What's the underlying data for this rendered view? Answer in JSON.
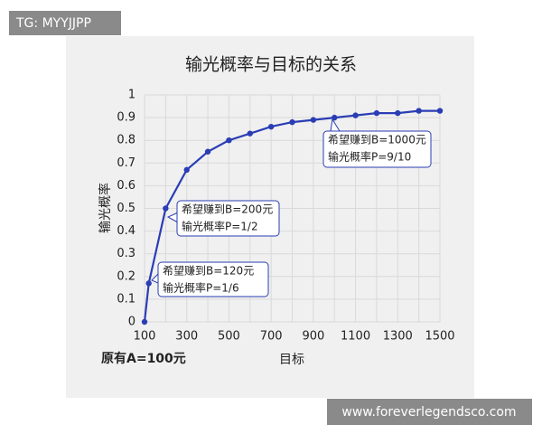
{
  "watermarks": {
    "top": "TG: MYYJJPP",
    "bottom": "www.foreverlegendsco.com"
  },
  "chart_data": {
    "type": "line",
    "title": "输光概率与目标的关系",
    "x_label": "目标",
    "y_label": "输光概率",
    "note": "原有A=100元",
    "x": [
      100,
      120,
      200,
      300,
      400,
      500,
      600,
      700,
      800,
      900,
      1000,
      1100,
      1200,
      1300,
      1400,
      1500
    ],
    "values": [
      0,
      0.17,
      0.5,
      0.67,
      0.75,
      0.8,
      0.83,
      0.86,
      0.88,
      0.89,
      0.9,
      0.91,
      0.92,
      0.92,
      0.93,
      0.93
    ],
    "color": "#2a3db5",
    "xlim": [
      100,
      1500
    ],
    "xticks": [
      100,
      300,
      500,
      700,
      900,
      1100,
      1300,
      1500
    ],
    "x_minor_ticks": [
      200,
      400,
      600,
      800,
      1000,
      1200,
      1400
    ],
    "ylim": [
      0,
      1
    ],
    "yticks": [
      0,
      0.1,
      0.2,
      0.3,
      0.4,
      0.5,
      0.6,
      0.7,
      0.8,
      0.9,
      1
    ],
    "grid": true,
    "annotations": [
      {
        "lines": [
          "希望赚到B=120元",
          "输光概率P=1/6"
        ]
      },
      {
        "lines": [
          "希望赚到B=200元",
          "输光概率P=1/2"
        ]
      },
      {
        "lines": [
          "希望赚到B=1000元",
          "输光概率P=9/10"
        ]
      }
    ]
  }
}
